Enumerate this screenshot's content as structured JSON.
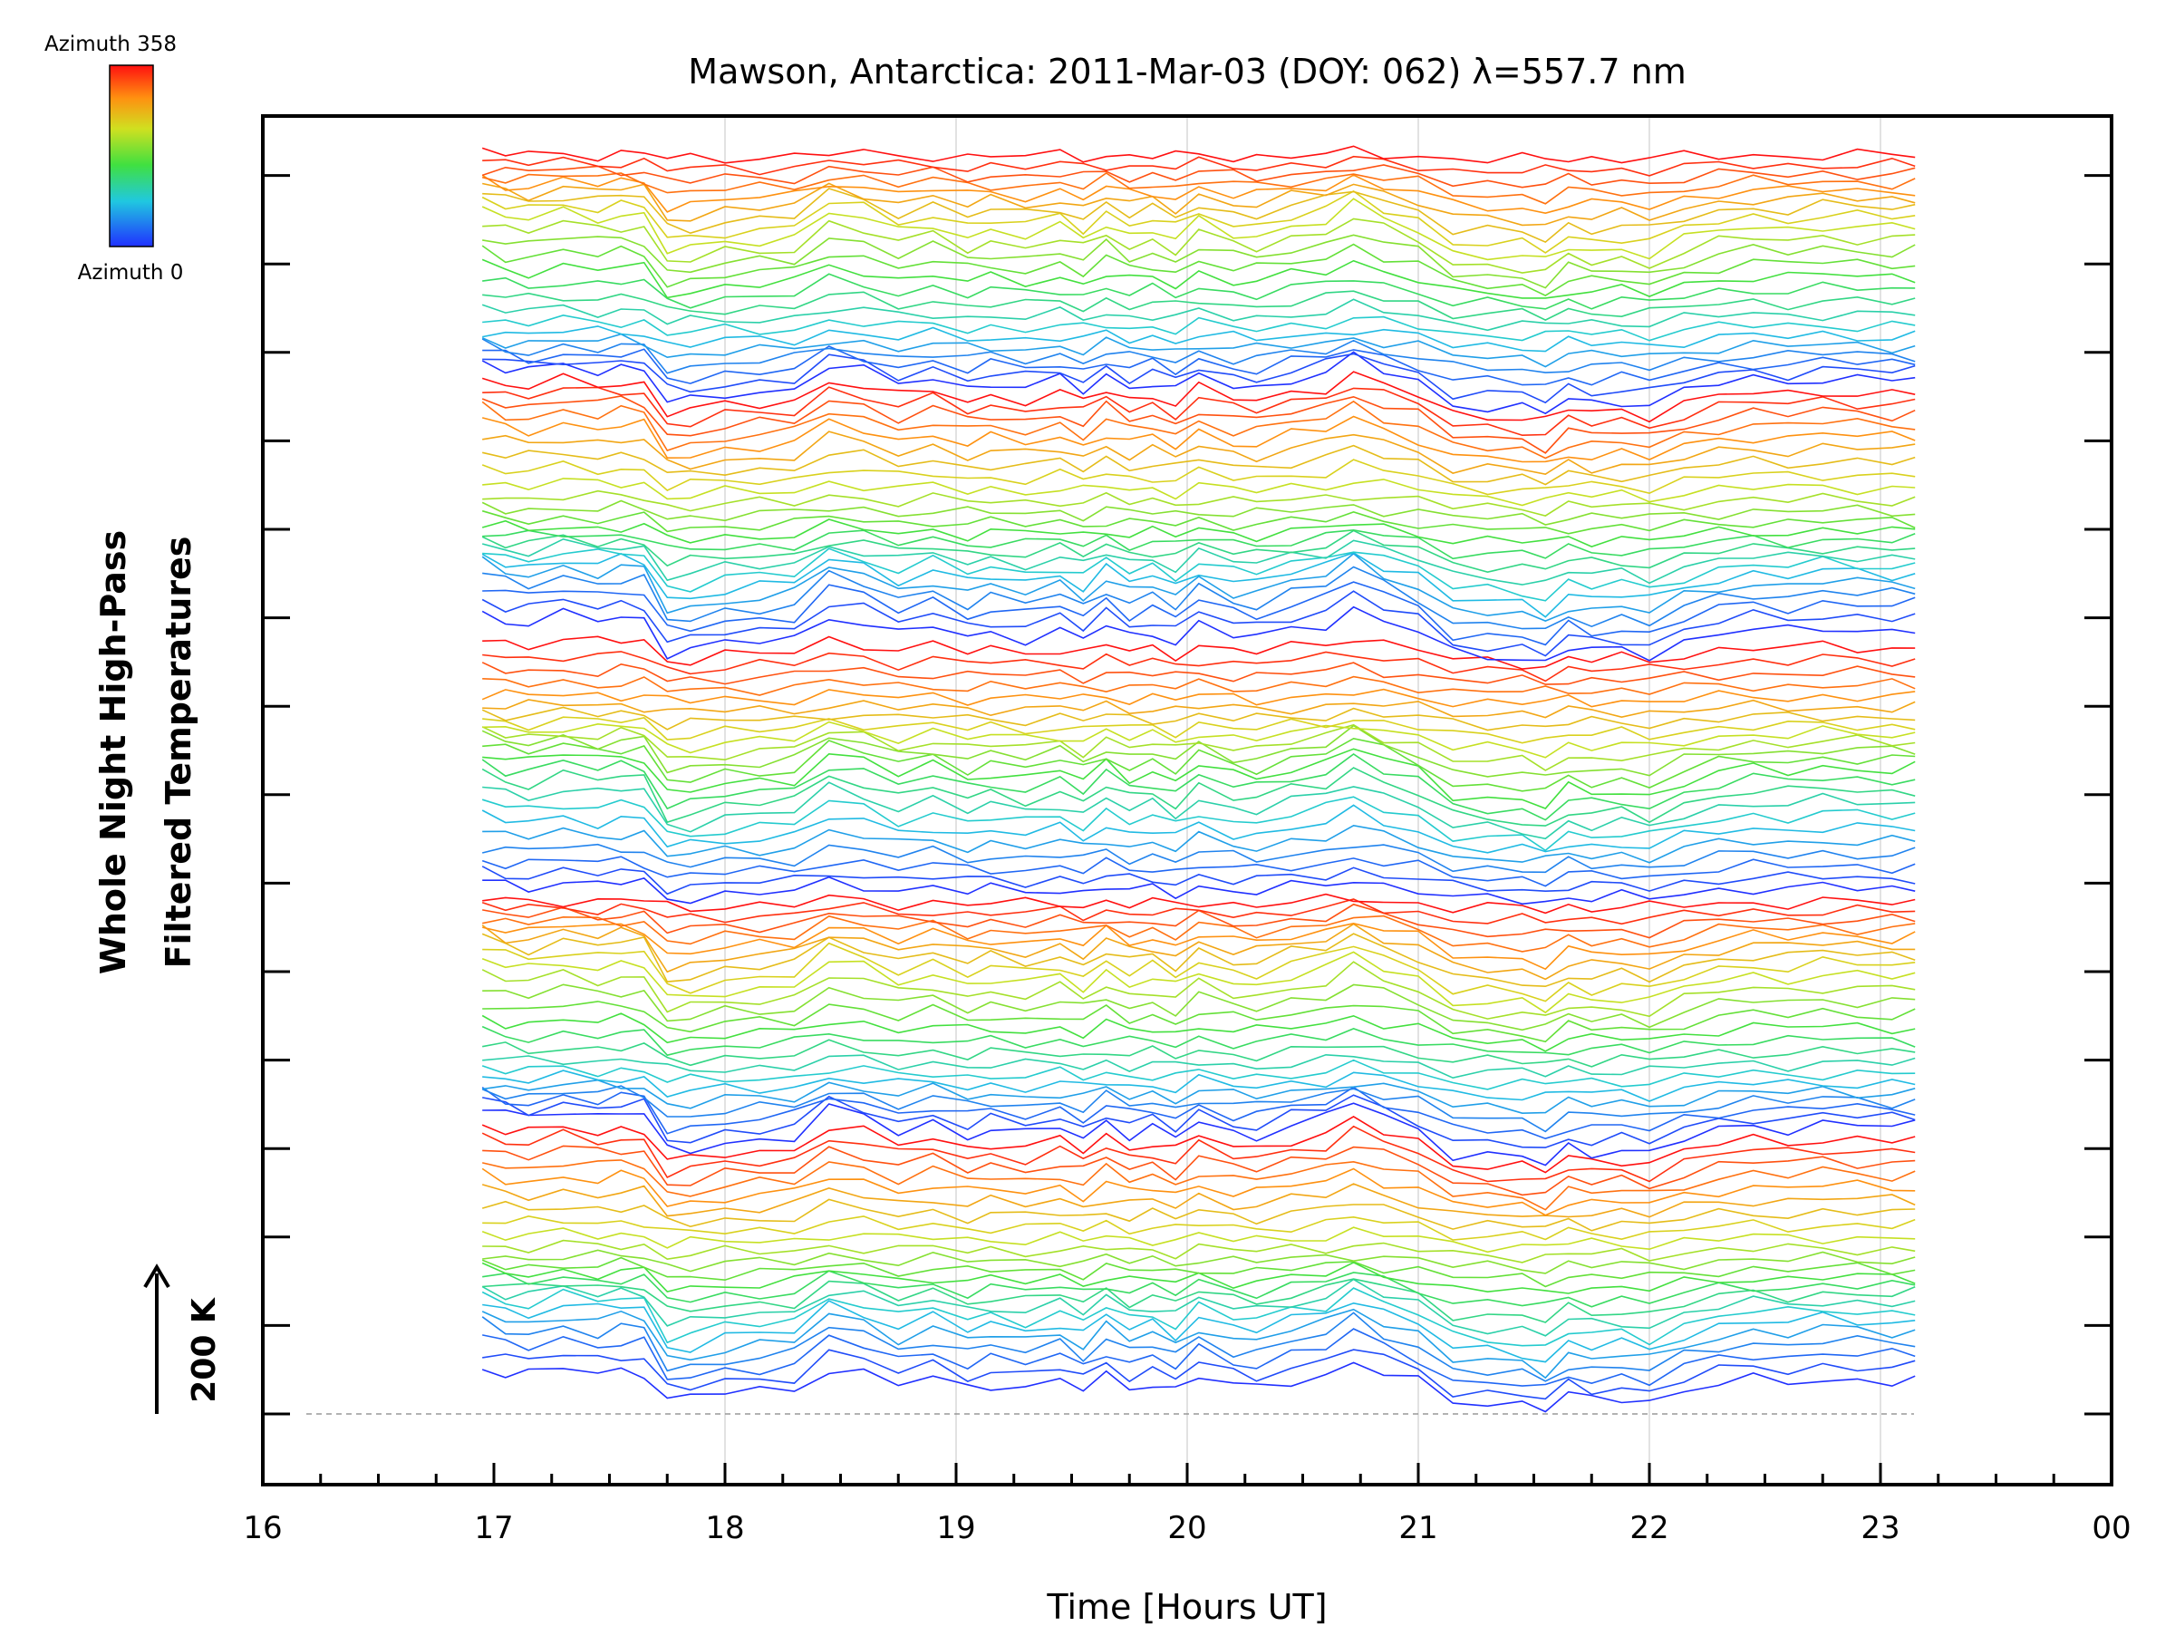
{
  "chart_data": {
    "type": "line",
    "title": "Mawson, Antarctica: 2011-Mar-03 (DOY: 062) λ=557.7 nm",
    "xlabel": "Time [Hours UT]",
    "ylabel_line1": "Whole Night High-Pass",
    "ylabel_line2": "Filtered Temperatures",
    "scale_label": "200 K",
    "xlim": [
      16,
      24
    ],
    "x_tick_labels": [
      "16",
      "17",
      "18",
      "19",
      "20",
      "21",
      "22",
      "23",
      "00"
    ],
    "colorbar": {
      "top_label": "Azimuth 358",
      "bottom_label": "Azimuth 0",
      "range": [
        0,
        358
      ]
    },
    "vertical_gridlines_hours": [
      18,
      19,
      20,
      21,
      22,
      23
    ],
    "traces": {
      "count": 115,
      "stack_groups": 5,
      "x": [
        16.95,
        17.05,
        17.15,
        17.3,
        17.45,
        17.55,
        17.65,
        17.75,
        17.85,
        18.0,
        18.15,
        18.3,
        18.45,
        18.6,
        18.75,
        18.9,
        19.05,
        19.15,
        19.3,
        19.45,
        19.55,
        19.65,
        19.75,
        19.85,
        19.95,
        20.05,
        20.2,
        20.3,
        20.45,
        20.6,
        20.72,
        20.85,
        21.0,
        21.15,
        21.3,
        21.45,
        21.55,
        21.65,
        21.75,
        21.88,
        22.0,
        22.15,
        22.3,
        22.45,
        22.6,
        22.75,
        22.9,
        23.05,
        23.15
      ],
      "reference_shape": [
        0.75,
        0.58,
        0.52,
        0.7,
        0.58,
        0.66,
        0.62,
        -0.15,
        -0.12,
        0.05,
        0.1,
        0.16,
        0.7,
        0.55,
        0.25,
        0.45,
        0.18,
        0.3,
        0.18,
        0.36,
        0.12,
        0.48,
        0.2,
        0.32,
        0.1,
        0.48,
        0.22,
        0.18,
        0.4,
        0.52,
        0.85,
        0.55,
        0.32,
        -0.18,
        -0.22,
        -0.26,
        -0.4,
        -0.05,
        -0.15,
        -0.08,
        -0.2,
        0.1,
        0.28,
        0.38,
        0.32,
        0.42,
        0.38,
        0.35,
        0.38
      ]
    }
  }
}
